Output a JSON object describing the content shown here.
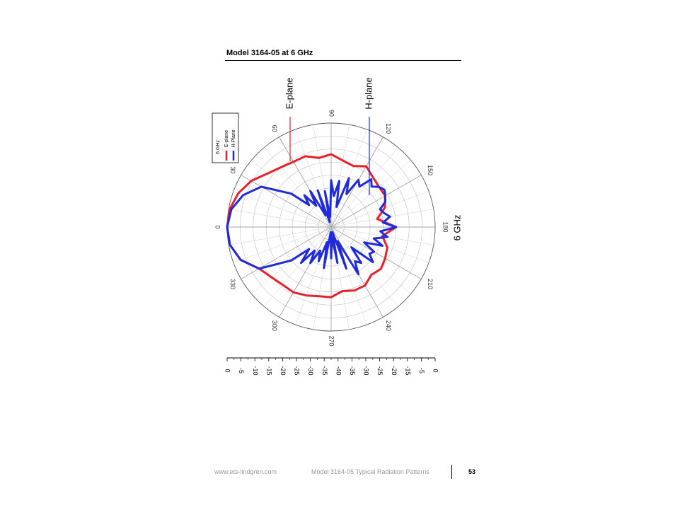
{
  "document": {
    "title": "Model 3164-05 at 6 GHz",
    "footer": {
      "url": "www.ets-lindgren.com",
      "doc_title": "Model 3164-05 Typical Radiation Patterns",
      "page_number": "53"
    }
  },
  "chart_data": {
    "type": "polar",
    "frequency_label": "6 GHz",
    "legend": {
      "title": "6 GHz",
      "entries": [
        "E-plane",
        "H-Plane"
      ],
      "placement": "top-left"
    },
    "callouts": [
      "E-plane",
      "H-plane"
    ],
    "angle_labels": [
      "0",
      "30",
      "60",
      "90",
      "120",
      "150",
      "180",
      "210",
      "240",
      "270",
      "300",
      "330"
    ],
    "radial_ticks": [
      "0",
      "-5",
      "-10",
      "-15",
      "-20",
      "-25",
      "-30",
      "-35",
      "-40",
      "-35",
      "-30",
      "-25",
      "-20",
      "-15",
      "-5",
      "0"
    ],
    "r_range_db": [
      -40,
      0
    ],
    "grid": true,
    "colors": {
      "E-plane": "#e8202a",
      "H-plane": "#1f2bd8"
    },
    "series": [
      {
        "name": "E-plane",
        "angles_deg": [
          0,
          10,
          20,
          30,
          40,
          50,
          60,
          70,
          80,
          90,
          100,
          110,
          120,
          130,
          140,
          150,
          160,
          170,
          180,
          190,
          200,
          210,
          220,
          230,
          240,
          250,
          260,
          270,
          280,
          290,
          300,
          310,
          320,
          330,
          340,
          350
        ],
        "values_db": [
          0,
          -0.4,
          -2,
          -4.5,
          -8,
          -10,
          -11,
          -11,
          -13,
          -12,
          -14,
          -15,
          -13,
          -15,
          -16,
          -16,
          -18,
          -22,
          -15,
          -20,
          -17,
          -16,
          -15,
          -16,
          -14,
          -14,
          -15,
          -13,
          -13,
          -12,
          -11,
          -11,
          -10,
          -8,
          -3,
          -0.5
        ]
      },
      {
        "name": "H-plane",
        "angles_deg": [
          0,
          10,
          20,
          30,
          40,
          45,
          50,
          55,
          60,
          65,
          70,
          75,
          80,
          85,
          90,
          95,
          100,
          105,
          110,
          115,
          120,
          125,
          130,
          135,
          140,
          145,
          150,
          155,
          160,
          165,
          170,
          175,
          180,
          185,
          190,
          195,
          200,
          205,
          210,
          215,
          220,
          225,
          230,
          235,
          240,
          245,
          250,
          255,
          260,
          265,
          270,
          275,
          280,
          285,
          290,
          295,
          300,
          305,
          310,
          315,
          320,
          330,
          340,
          350
        ],
        "values_db": [
          0,
          -1,
          -4,
          -9,
          -20,
          -28,
          -24,
          -30,
          -24,
          -35,
          -25,
          -38,
          -26,
          -36,
          -22,
          -28,
          -22,
          -32,
          -20,
          -26,
          -19,
          -21,
          -16,
          -18,
          -16,
          -15,
          -16,
          -17,
          -20,
          -19,
          -17,
          -20,
          -15,
          -21,
          -18,
          -23,
          -19,
          -26,
          -21,
          -22,
          -19,
          -29,
          -22,
          -24,
          -19,
          -34,
          -23,
          -38,
          -26,
          -36,
          -28,
          -38,
          -24,
          -34,
          -26,
          -30,
          -24,
          -29,
          -22,
          -28,
          -20,
          -8,
          -3,
          -0.5
        ]
      }
    ]
  }
}
